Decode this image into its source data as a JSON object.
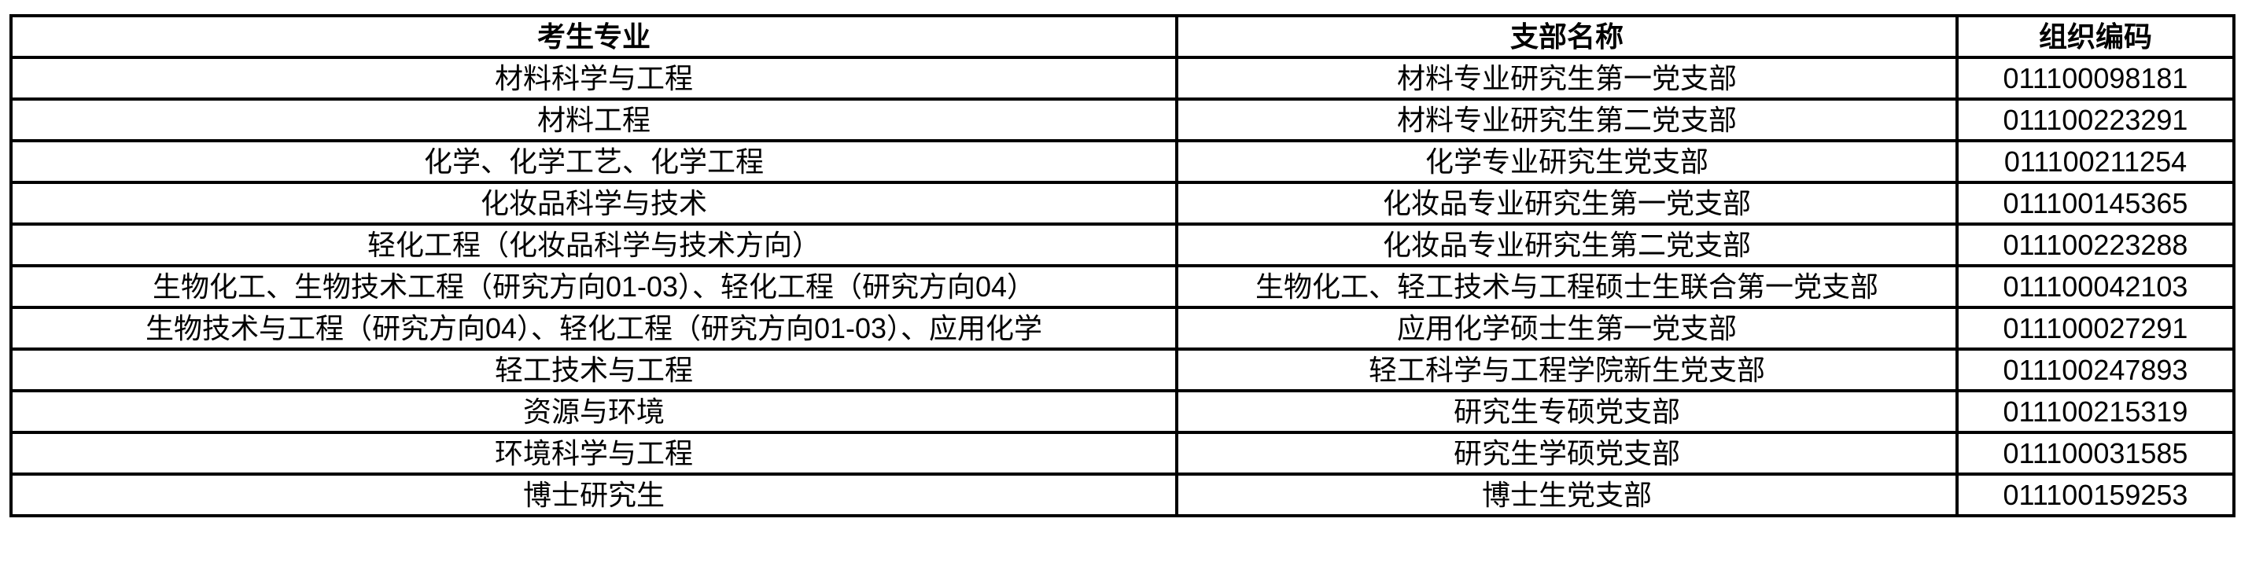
{
  "table": {
    "headers": [
      "考生专业",
      "支部名称",
      "组织编码"
    ],
    "rows": [
      [
        "材料科学与工程",
        "材料专业研究生第一党支部",
        "011100098181"
      ],
      [
        "材料工程",
        "材料专业研究生第二党支部",
        "011100223291"
      ],
      [
        "化学、化学工艺、化学工程",
        "化学专业研究生党支部",
        "011100211254"
      ],
      [
        "化妆品科学与技术",
        "化妆品专业研究生第一党支部",
        "011100145365"
      ],
      [
        "轻化工程（化妆品科学与技术方向）",
        "化妆品专业研究生第二党支部",
        "011100223288"
      ],
      [
        "生物化工、生物技术工程（研究方向01-03）、轻化工程（研究方向04）",
        "生物化工、轻工技术与工程硕士生联合第一党支部",
        "011100042103"
      ],
      [
        "生物技术与工程（研究方向04）、轻化工程（研究方向01-03）、应用化学",
        "应用化学硕士生第一党支部",
        "011100027291"
      ],
      [
        "轻工技术与工程",
        "轻工科学与工程学院新生党支部",
        "011100247893"
      ],
      [
        "资源与环境",
        "研究生专硕党支部",
        "011100215319"
      ],
      [
        "环境科学与工程",
        "研究生学硕党支部",
        "011100031585"
      ],
      [
        "博士研究生",
        "博士生党支部",
        "011100159253"
      ]
    ]
  }
}
